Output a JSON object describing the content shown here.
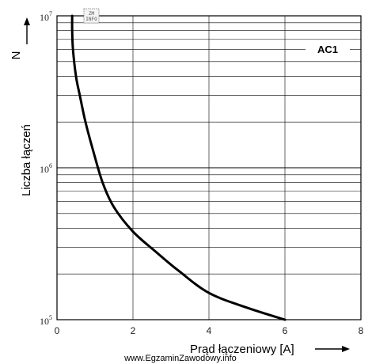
{
  "chart_data": {
    "type": "line",
    "title": "",
    "xlabel": "Prąd łączeniowy [A]",
    "ylabel": "Liczba łączeń",
    "ylabel_arrow_label": "N",
    "xlim": [
      0,
      8
    ],
    "ylim": [
      100000,
      10000000
    ],
    "yscale": "log",
    "grid": true,
    "x_ticks": [
      "0",
      "2",
      "4",
      "6",
      "8"
    ],
    "y_ticks": [
      {
        "base": "10",
        "exp": "5",
        "value": 100000
      },
      {
        "base": "10",
        "exp": "6",
        "value": 1000000
      },
      {
        "base": "10",
        "exp": "7",
        "value": 10000000
      }
    ],
    "annotation": "AC1",
    "series": [
      {
        "name": "",
        "color": "#000000",
        "points": [
          [
            0.4,
            10000000
          ],
          [
            0.4,
            8000000
          ],
          [
            0.42,
            6000000
          ],
          [
            0.5,
            4000000
          ],
          [
            0.6,
            3000000
          ],
          [
            0.75,
            2000000
          ],
          [
            0.95,
            1300000
          ],
          [
            1.2,
            800000
          ],
          [
            1.5,
            550000
          ],
          [
            2.0,
            380000
          ],
          [
            2.6,
            280000
          ],
          [
            3.2,
            210000
          ],
          [
            4.0,
            150000
          ],
          [
            5.0,
            120000
          ],
          [
            6.0,
            100000
          ]
        ]
      }
    ]
  },
  "watermark": "www.EgzaminZawodowy.info",
  "badge_lines": [
    "ZM",
    "INFO"
  ]
}
